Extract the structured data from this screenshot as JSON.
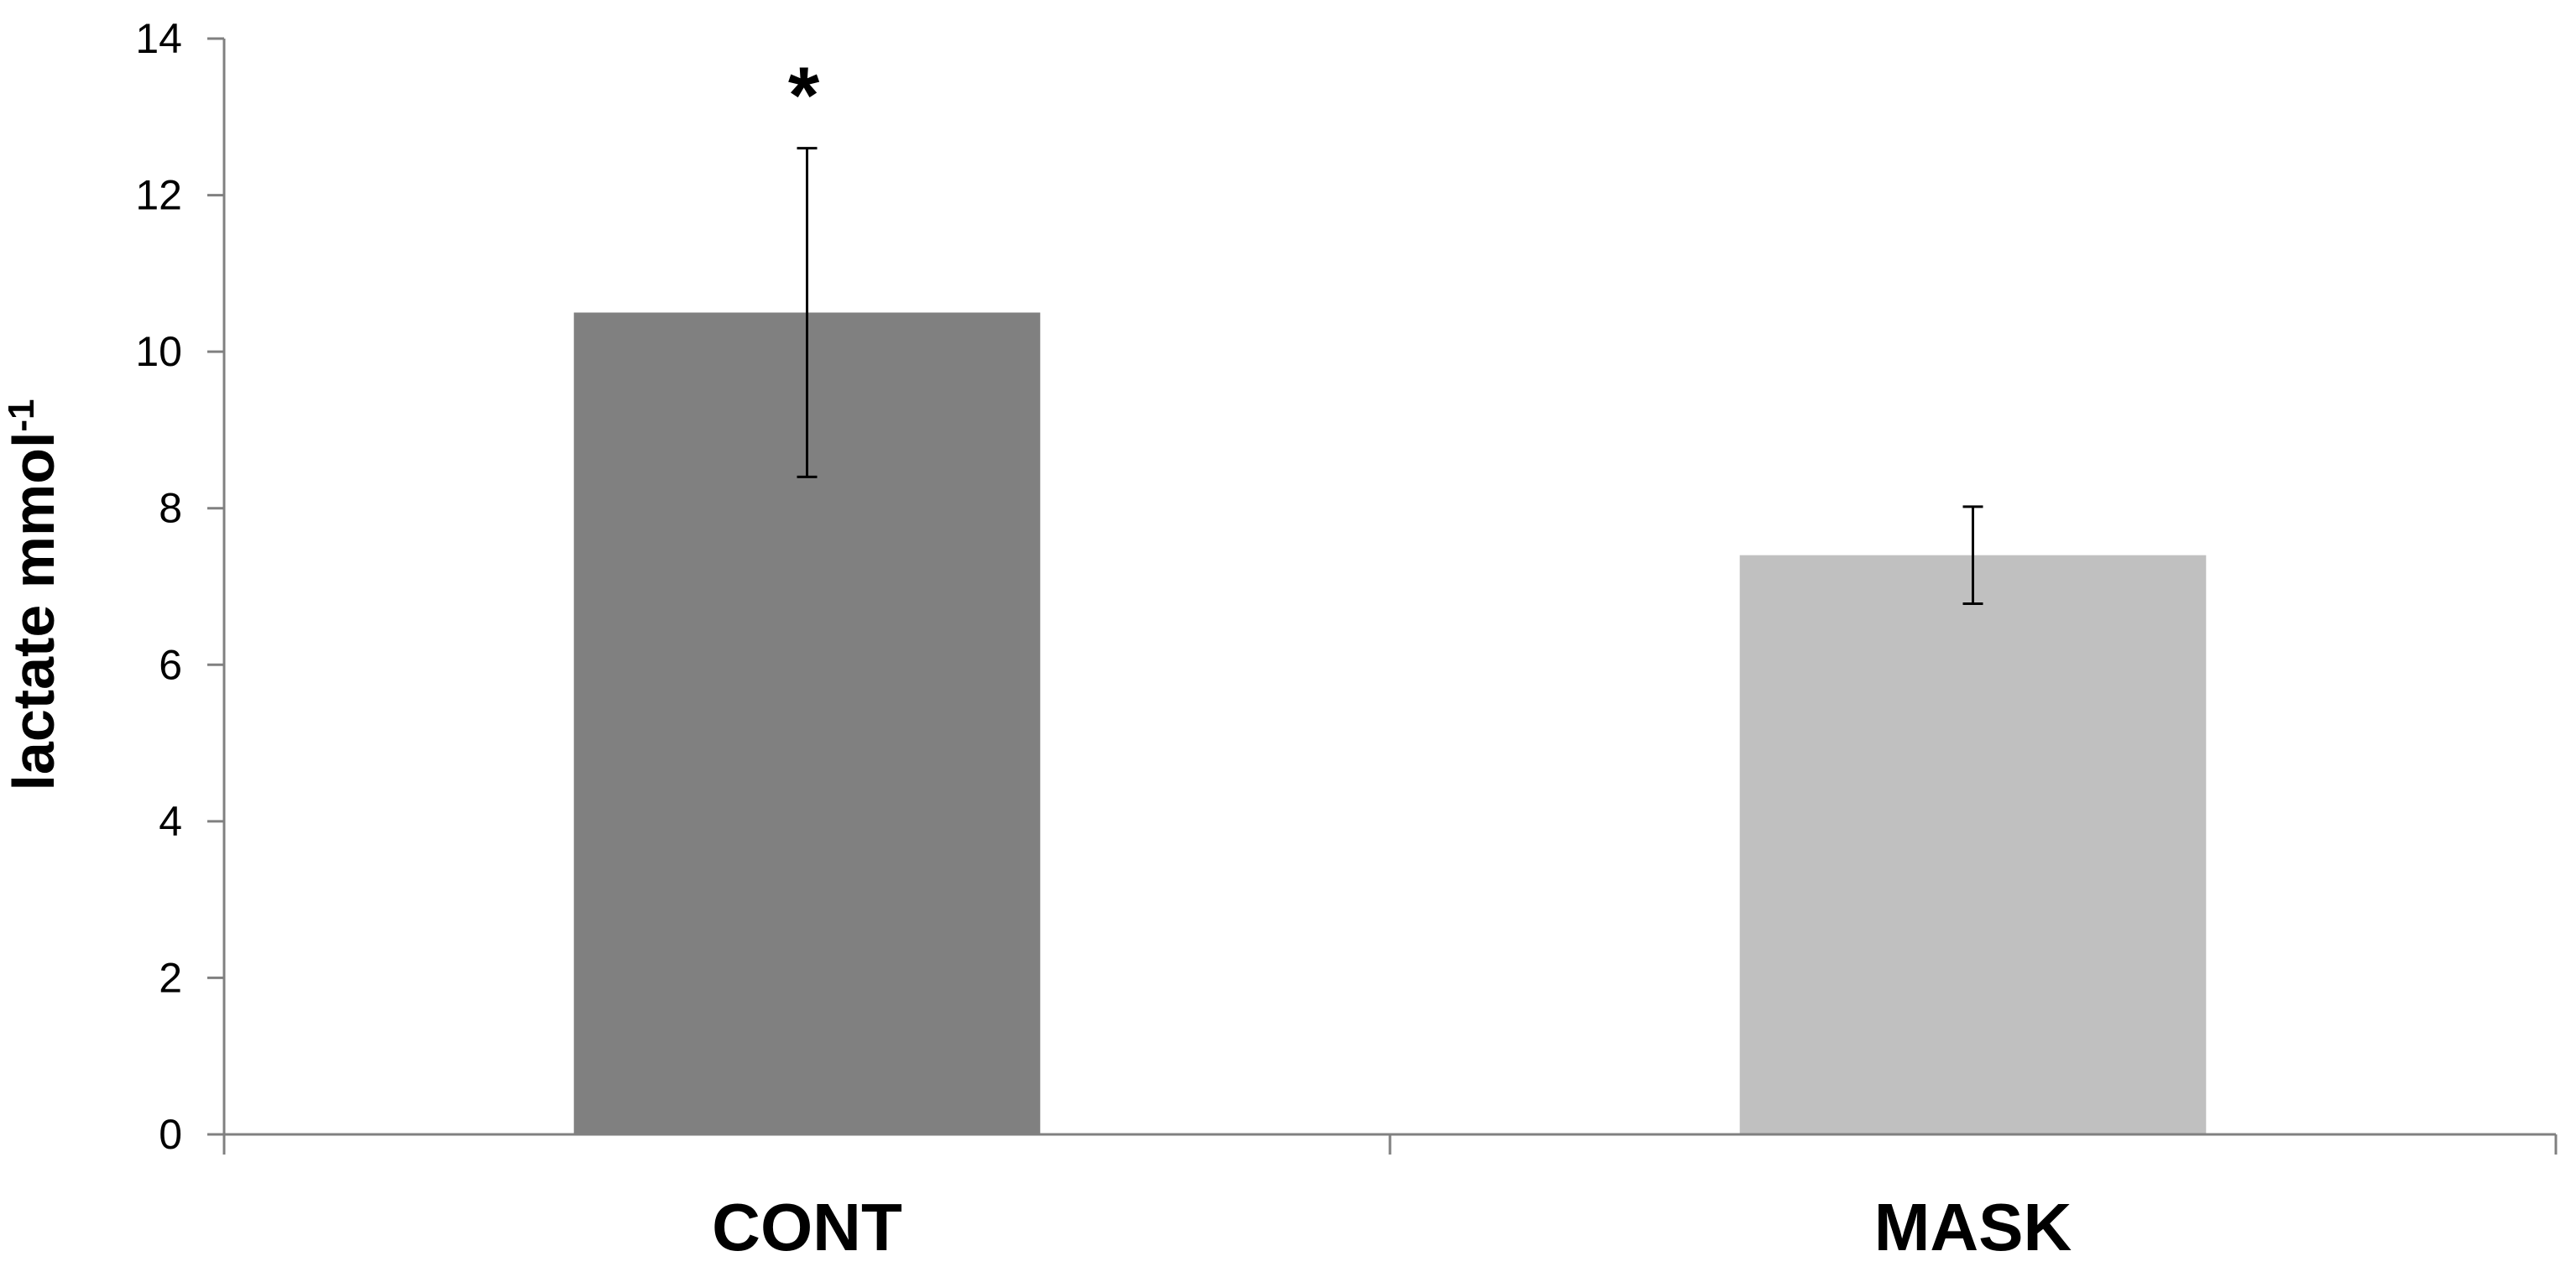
{
  "chart_data": {
    "type": "bar",
    "categories": [
      "CONT",
      "MASK"
    ],
    "values": [
      10.5,
      7.4
    ],
    "error": [
      2.1,
      0.62
    ],
    "bar_colors": [
      "#808080",
      "#c0c0c0"
    ],
    "annotations": [
      {
        "category": "CONT",
        "text": "*"
      }
    ],
    "ylabel": "lactate mmol",
    "ylabel_superscript": "-1",
    "ylim": [
      0,
      14
    ],
    "yticks": [
      0,
      2,
      4,
      6,
      8,
      10,
      12,
      14
    ],
    "grid": false
  }
}
